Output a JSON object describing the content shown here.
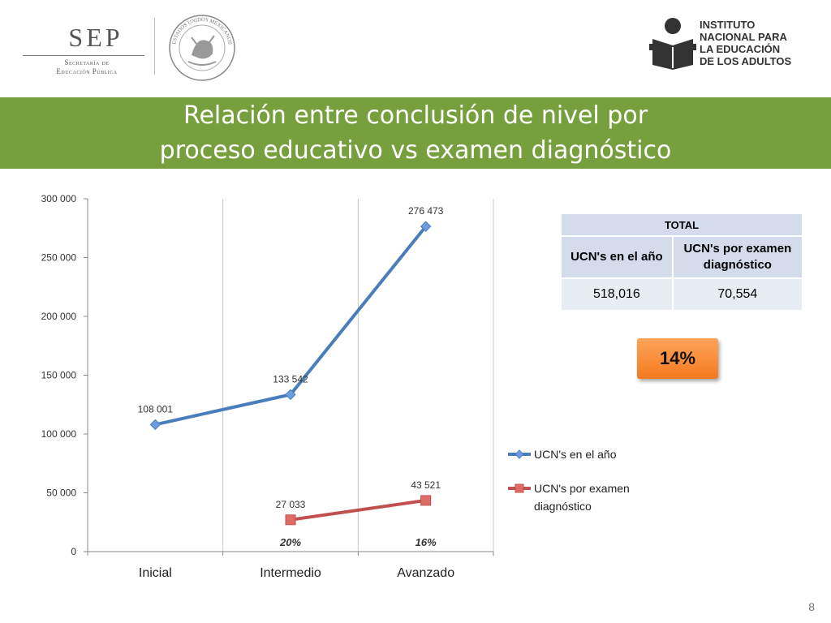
{
  "header": {
    "sep_logo": {
      "word": "SEP",
      "subtitle_line1": "Secretaría de",
      "subtitle_line2": "Educación Pública"
    },
    "seal": {
      "ring_text": "ESTADOS UNIDOS MEXICANOS"
    },
    "inea_logo": {
      "line1": "INSTITUTO",
      "line2": "NACIONAL PARA",
      "line3": "LA EDUCACIÓN",
      "line4": "DE LOS ADULTOS"
    }
  },
  "title": {
    "line1": "Relación entre conclusión de nivel por",
    "line2": "proceso educativo vs examen diagnóstico"
  },
  "colors": {
    "title_band": "#76a03d",
    "series_blue": "#4a7ebb",
    "series_red": "#c0504d",
    "badge_orange": "#f47a20",
    "table_header": "#d4dceb",
    "table_cell": "#e8ecf3"
  },
  "chart_data": {
    "type": "line",
    "categories": [
      "Inicial",
      "Intermedio",
      "Avanzado"
    ],
    "series": [
      {
        "name": "UCN's en el año",
        "values": [
          108001,
          133542,
          276473
        ],
        "labels": [
          "108 001",
          "133 542",
          "276 473"
        ],
        "color": "#4a7ebb",
        "marker": "diamond"
      },
      {
        "name": "UCN's por examen diagnóstico",
        "values": [
          null,
          27033,
          43521
        ],
        "labels": [
          "",
          "27 033",
          "43 521"
        ],
        "color": "#c0504d",
        "marker": "square"
      }
    ],
    "ylim": [
      0,
      300000
    ],
    "yticks": [
      0,
      50000,
      100000,
      150000,
      200000,
      250000,
      300000
    ],
    "ytick_labels": [
      "0",
      "50 000",
      "100 000",
      "150 000",
      "200 000",
      "250 000",
      "300 000"
    ],
    "percent_annotations": [
      "",
      "20%",
      "16%"
    ],
    "grid": "vertical",
    "legend": "right",
    "legend_labels": {
      "series1": "UCN's en el año",
      "series2_line1": "UCN's por examen",
      "series2_line2": "diagnóstico"
    }
  },
  "total_table": {
    "header": "TOTAL",
    "col1_header": "UCN's en el año",
    "col2_header_line1": "UCN's por examen",
    "col2_header_line2": "diagnóstico",
    "col1_value": "518,016",
    "col2_value": "70,554"
  },
  "percent_badge": "14%",
  "page_number": "8"
}
